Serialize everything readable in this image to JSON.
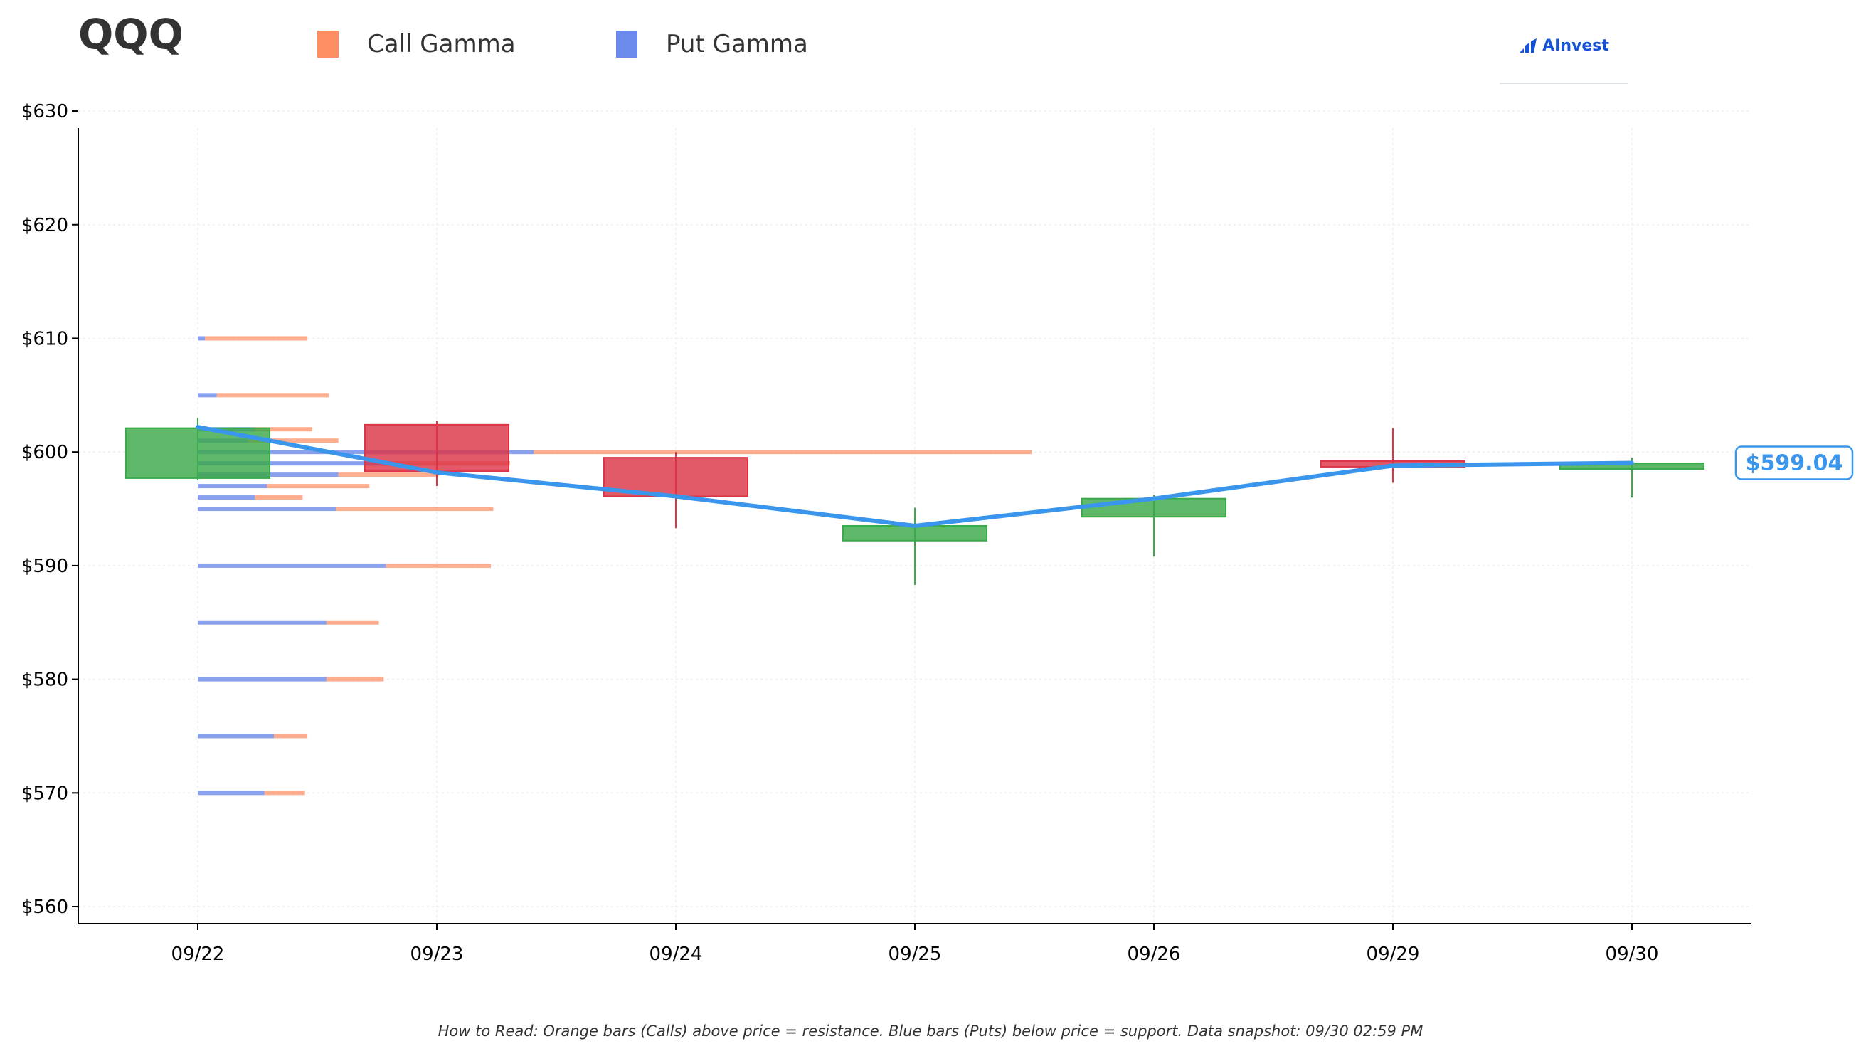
{
  "header": {
    "ticker": "QQQ",
    "logo_text": "AInvest"
  },
  "footnote": "How to Read: Orange bars (Calls) above price = resistance. Blue bars (Puts) below price = support. Data snapshot: 09/30 02:59 PM",
  "colors": {
    "call": "#fd8d62",
    "put": "#6c8aea",
    "up": "#3aaa4a",
    "down": "#dc3545",
    "price_line": "#3a96ec",
    "logo": "#1554d6"
  },
  "chart_data": {
    "type": "candlestick",
    "legend": [
      {
        "key": "call",
        "label": "Call Gamma"
      },
      {
        "key": "put",
        "label": "Put Gamma"
      }
    ],
    "categories": [
      "09/22",
      "09/23",
      "09/24",
      "09/25",
      "09/26",
      "09/29",
      "09/30"
    ],
    "ylim": [
      558.5,
      628.5
    ],
    "y_ticks": [
      560,
      570,
      580,
      590,
      600,
      610,
      620,
      630
    ],
    "y_tick_labels": [
      "$560",
      "$570",
      "$580",
      "$590",
      "$600",
      "$610",
      "$620",
      "$630"
    ],
    "candles": [
      {
        "open": 597.7,
        "close": 602.1,
        "high": 603.0,
        "low": 597.5
      },
      {
        "open": 602.4,
        "close": 598.3,
        "high": 602.7,
        "low": 597.0
      },
      {
        "open": 599.5,
        "close": 596.1,
        "high": 600.0,
        "low": 593.3
      },
      {
        "open": 592.2,
        "close": 593.5,
        "high": 595.1,
        "low": 588.3
      },
      {
        "open": 594.3,
        "close": 595.9,
        "high": 596.2,
        "low": 590.8
      },
      {
        "open": 599.2,
        "close": 598.7,
        "high": 602.1,
        "low": 597.3
      },
      {
        "open": 598.5,
        "close": 599.0,
        "high": 599.5,
        "low": 596.0
      }
    ],
    "price_line": [
      602.2,
      598.2,
      596.1,
      593.5,
      595.9,
      598.8,
      599.04
    ],
    "last_price_label": "$599.04",
    "gamma_levels": [
      {
        "strike": 570,
        "put": 0.28,
        "call": 0.17
      },
      {
        "strike": 575,
        "put": 0.32,
        "call": 0.14
      },
      {
        "strike": 580,
        "put": 0.54,
        "call": 0.24
      },
      {
        "strike": 585,
        "put": 0.54,
        "call": 0.22
      },
      {
        "strike": 590,
        "put": 0.79,
        "call": 0.44
      },
      {
        "strike": 595,
        "put": 0.58,
        "call": 0.66
      },
      {
        "strike": 596,
        "put": 0.24,
        "call": 0.2
      },
      {
        "strike": 597,
        "put": 0.29,
        "call": 0.43
      },
      {
        "strike": 598,
        "put": 0.59,
        "call": 0.42
      },
      {
        "strike": 599,
        "put": 0.82,
        "call": 0.49
      },
      {
        "strike": 600,
        "put": 1.41,
        "call": 2.09
      },
      {
        "strike": 601,
        "put": 0.21,
        "call": 0.38
      },
      {
        "strike": 602,
        "put": 0.24,
        "call": 0.24
      },
      {
        "strike": 605,
        "put": 0.08,
        "call": 0.47
      },
      {
        "strike": 610,
        "put": 0.03,
        "call": 0.43
      }
    ]
  }
}
